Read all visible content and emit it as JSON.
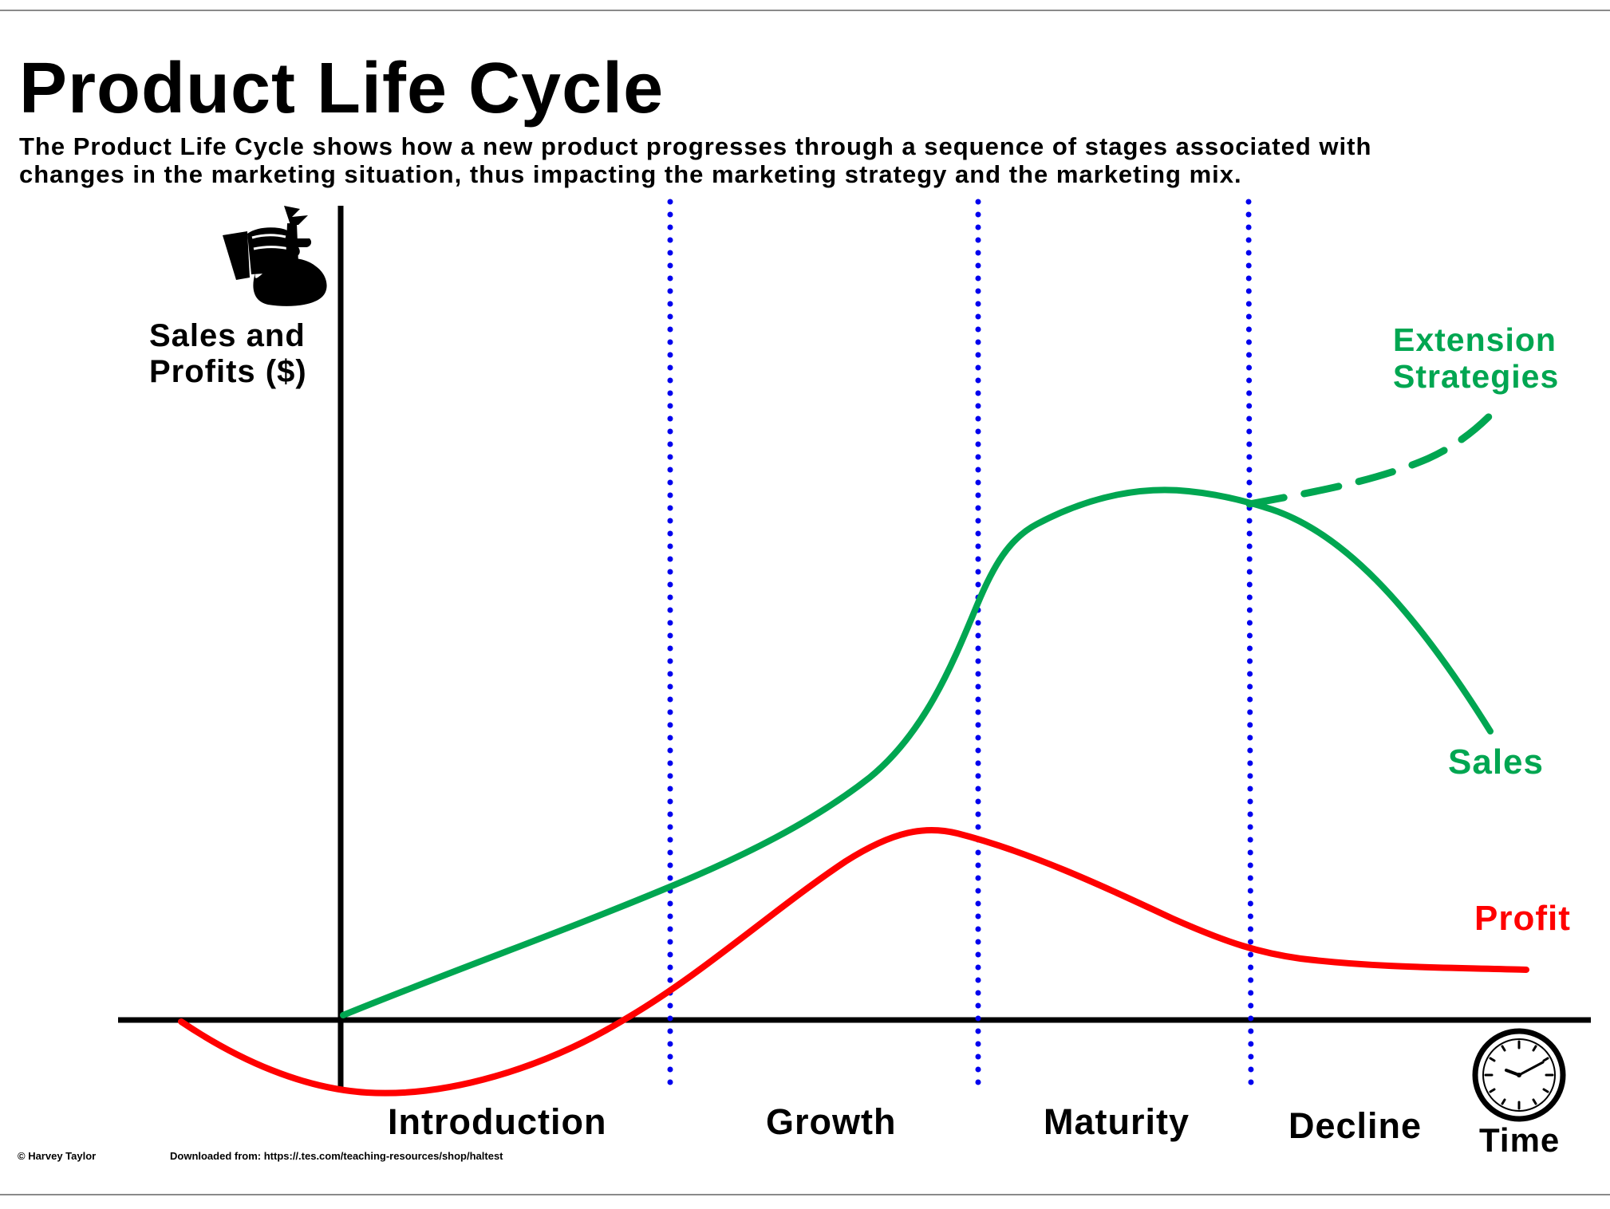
{
  "header": {
    "title": "Product Life Cycle",
    "subtitle_line1": "The Product Life Cycle shows how a new product progresses through a sequence of stages associated with",
    "subtitle_line2": "changes in the marketing situation, thus impacting the marketing strategy and the marketing mix."
  },
  "axes": {
    "y_label_line1": "Sales and",
    "y_label_line2": "Profits ($)",
    "x_label": "Time",
    "y_icon": "money-bag-icon",
    "x_icon": "clock-icon"
  },
  "stages": [
    "Introduction",
    "Growth",
    "Maturity",
    "Decline"
  ],
  "curves": {
    "sales_label": "Sales",
    "profit_label": "Profit",
    "extension_line1": "Extension",
    "extension_line2": "Strategies"
  },
  "colors": {
    "sales": "#00a651",
    "profit": "#ff0000",
    "stage_divider": "#0000ee",
    "axis": "#000000"
  },
  "footer": {
    "credit": "© Harvey Taylor",
    "source": "Downloaded from: https://.tes.com/teaching-resources/shop/haltest"
  }
}
